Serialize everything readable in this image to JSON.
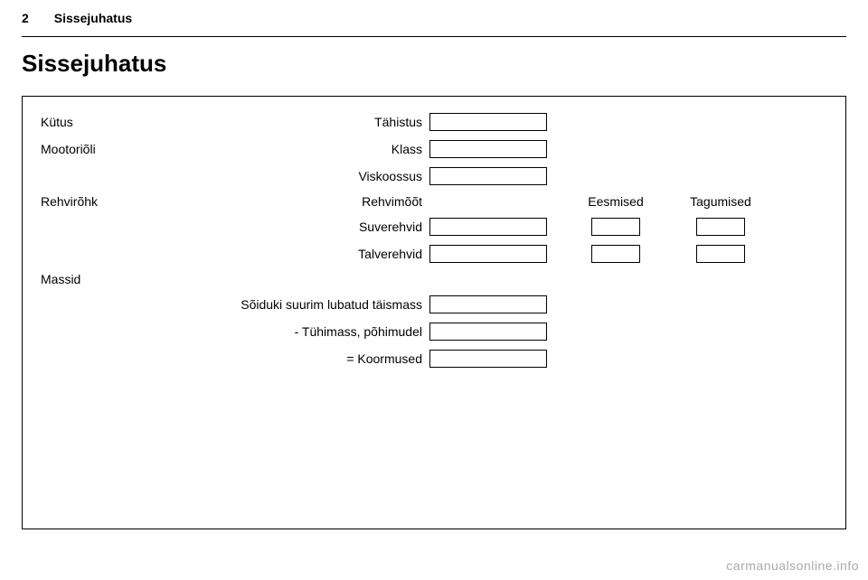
{
  "header": {
    "pageNumber": "2",
    "sectionLabel": "Sissejuhatus"
  },
  "title": "Sissejuhatus",
  "labels": {
    "fuel": "Kütus",
    "fuelDesignation": "Tähistus",
    "engineOil": "Mootoriõli",
    "oilClass": "Klass",
    "oilViscosity": "Viskoossus",
    "tyrePressure": "Rehvirõhk",
    "tyreSize": "Rehvimõõt",
    "front": "Eesmised",
    "rear": "Tagumised",
    "summerTyres": "Suverehvid",
    "winterTyres": "Talverehvid",
    "masses": "Massid",
    "grossWeight": "Sõiduki suurim lubatud täismass",
    "kerbWeight": "- Tühimass, põhimudel",
    "loads": "= Koormused"
  },
  "watermark": "carmanualsonline.info",
  "style": {
    "bg": "#ffffff",
    "text": "#000000",
    "watermarkColor": "#aaaaaa",
    "border": "#000000",
    "titleFontSize": 26,
    "bodyFontSize": 14,
    "boxHeight": 20
  }
}
